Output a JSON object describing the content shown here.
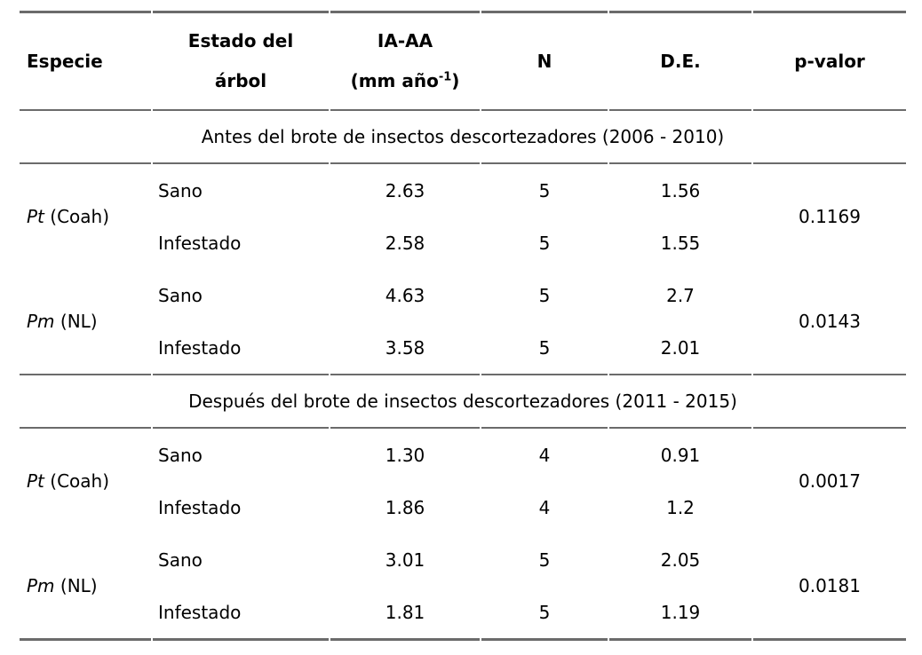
{
  "table": {
    "headers": {
      "especie": "Especie",
      "estado_line1": "Estado del",
      "estado_line2": "árbol",
      "iaaa_line1": "IA-AA",
      "iaaa_unit_open": "(mm año",
      "iaaa_sup": "-1",
      "iaaa_unit_close": ")",
      "n": "N",
      "de": "D.E.",
      "pvalor": "p-valor"
    },
    "sections": [
      {
        "title": "Antes del brote de insectos descortezadores (2006 - 2010)",
        "groups": [
          {
            "species_italic": "Pt",
            "species_rest": " (Coah)",
            "p_value": "0.1169",
            "rows": [
              {
                "estado": "Sano",
                "iaaa": "2.63",
                "n": "5",
                "de": "1.56"
              },
              {
                "estado": "Infestado",
                "iaaa": "2.58",
                "n": "5",
                "de": "1.55"
              }
            ]
          },
          {
            "species_italic": "Pm",
            "species_rest": " (NL)",
            "p_value": "0.0143",
            "rows": [
              {
                "estado": "Sano",
                "iaaa": "4.63",
                "n": "5",
                "de": "2.7"
              },
              {
                "estado": "Infestado",
                "iaaa": "3.58",
                "n": "5",
                "de": "2.01"
              }
            ]
          }
        ]
      },
      {
        "title": "Después del brote de insectos descortezadores (2011 - 2015)",
        "groups": [
          {
            "species_italic": "Pt",
            "species_rest": " (Coah)",
            "p_value": "0.0017",
            "rows": [
              {
                "estado": "Sano",
                "iaaa": "1.30",
                "n": "4",
                "de": "0.91"
              },
              {
                "estado": "Infestado",
                "iaaa": "1.86",
                "n": "4",
                "de": "1.2"
              }
            ]
          },
          {
            "species_italic": "Pm",
            "species_rest": " (NL)",
            "p_value": "0.0181",
            "rows": [
              {
                "estado": "Sano",
                "iaaa": "3.01",
                "n": "5",
                "de": "2.05"
              },
              {
                "estado": "Infestado",
                "iaaa": "1.81",
                "n": "5",
                "de": "1.19"
              }
            ]
          }
        ]
      }
    ]
  },
  "colors": {
    "rule_line": "#6b6b6b",
    "text": "#000000",
    "background": "#ffffff"
  }
}
